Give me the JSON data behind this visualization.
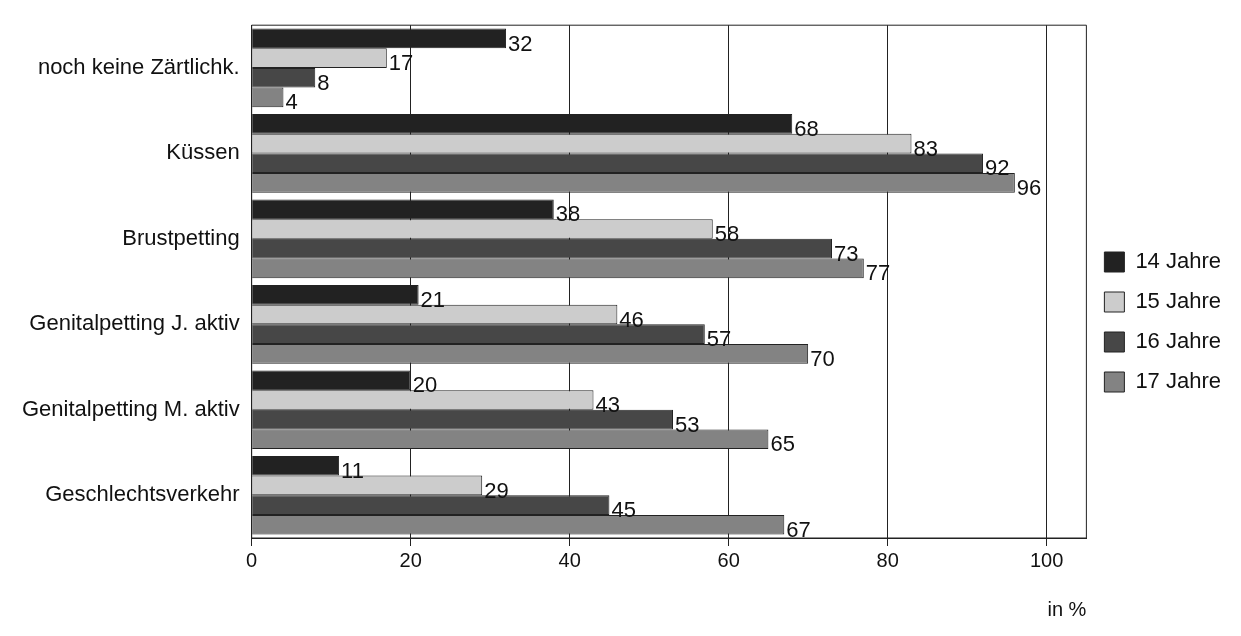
{
  "chart_data": {
    "type": "bar",
    "orientation": "horizontal",
    "xlabel": "in %",
    "categories": [
      "noch keine Zärtlichk.",
      "Küssen",
      "Brustpetting",
      "Genitalpetting J. aktiv",
      "Genitalpetting M. aktiv",
      "Geschlechtsverkehr"
    ],
    "series": [
      {
        "name": "14 Jahre",
        "color": "#222222",
        "values": [
          32,
          68,
          38,
          21,
          20,
          11
        ]
      },
      {
        "name": "15 Jahre",
        "color": "#cccccc",
        "values": [
          17,
          83,
          58,
          46,
          43,
          29
        ]
      },
      {
        "name": "16 Jahre",
        "color": "#474747",
        "values": [
          8,
          92,
          73,
          57,
          53,
          45
        ]
      },
      {
        "name": "17 Jahre",
        "color": "#838383",
        "values": [
          4,
          96,
          77,
          70,
          65,
          67
        ]
      }
    ],
    "xlim": [
      0,
      105
    ],
    "xticks": [
      0,
      20,
      40,
      60,
      80,
      100
    ],
    "grid": "x",
    "legend": "right",
    "data_labels": true
  }
}
